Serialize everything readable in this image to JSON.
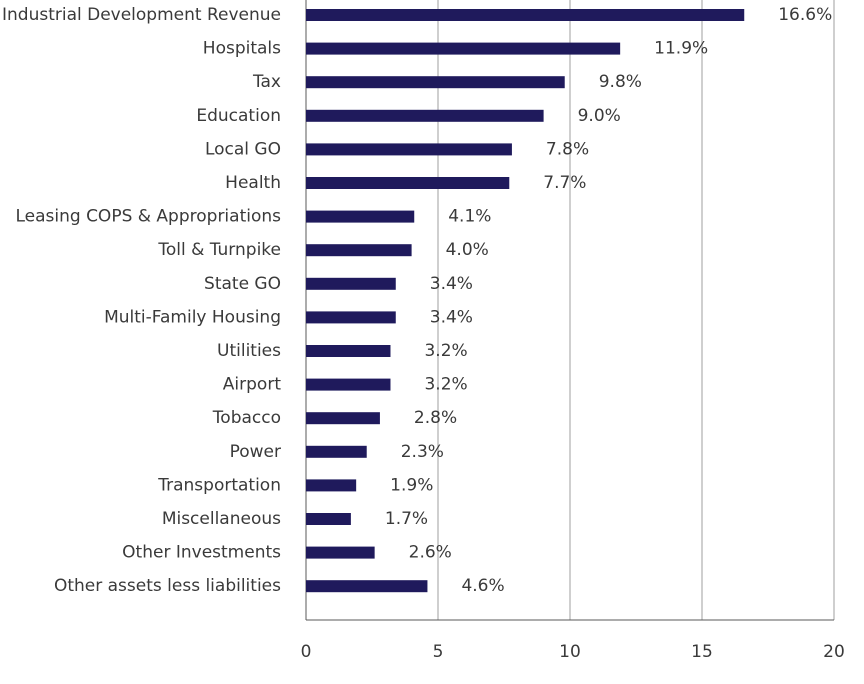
{
  "chart_data": {
    "type": "bar",
    "orientation": "horizontal",
    "title": "",
    "xlabel": "",
    "ylabel": "",
    "categories": [
      "Industrial Development Revenue",
      "Hospitals",
      "Tax",
      "Education",
      "Local GO",
      "Health",
      "Leasing COPS & Appropriations",
      "Toll & Turnpike",
      "State GO",
      "Multi-Family Housing",
      "Utilities",
      "Airport",
      "Tobacco",
      "Power",
      "Transportation",
      "Miscellaneous",
      "Other Investments",
      "Other assets less liabilities"
    ],
    "values": [
      16.6,
      11.9,
      9.8,
      9.0,
      7.8,
      7.7,
      4.1,
      4.0,
      3.4,
      3.4,
      3.2,
      3.2,
      2.8,
      2.3,
      1.9,
      1.7,
      2.6,
      4.6
    ],
    "value_labels": [
      "16.6%",
      "11.9%",
      "9.8%",
      "9.0%",
      "7.8%",
      "7.7%",
      "4.1%",
      "4.0%",
      "3.4%",
      "3.4%",
      "3.2%",
      "3.2%",
      "2.8%",
      "2.3%",
      "1.9%",
      "1.7%",
      "2.6%",
      "4.6%"
    ],
    "xlim": [
      0,
      20
    ],
    "xticks": [
      0,
      5,
      10,
      15,
      20
    ],
    "xtick_labels": [
      "0",
      "5",
      "10",
      "15",
      "20"
    ],
    "grid": "vertical",
    "legend": "none",
    "colors": {
      "bar": "#1f1a5c",
      "grid": "#bfbfbf",
      "axis": "#595959",
      "text": "#3a3a3a"
    }
  }
}
